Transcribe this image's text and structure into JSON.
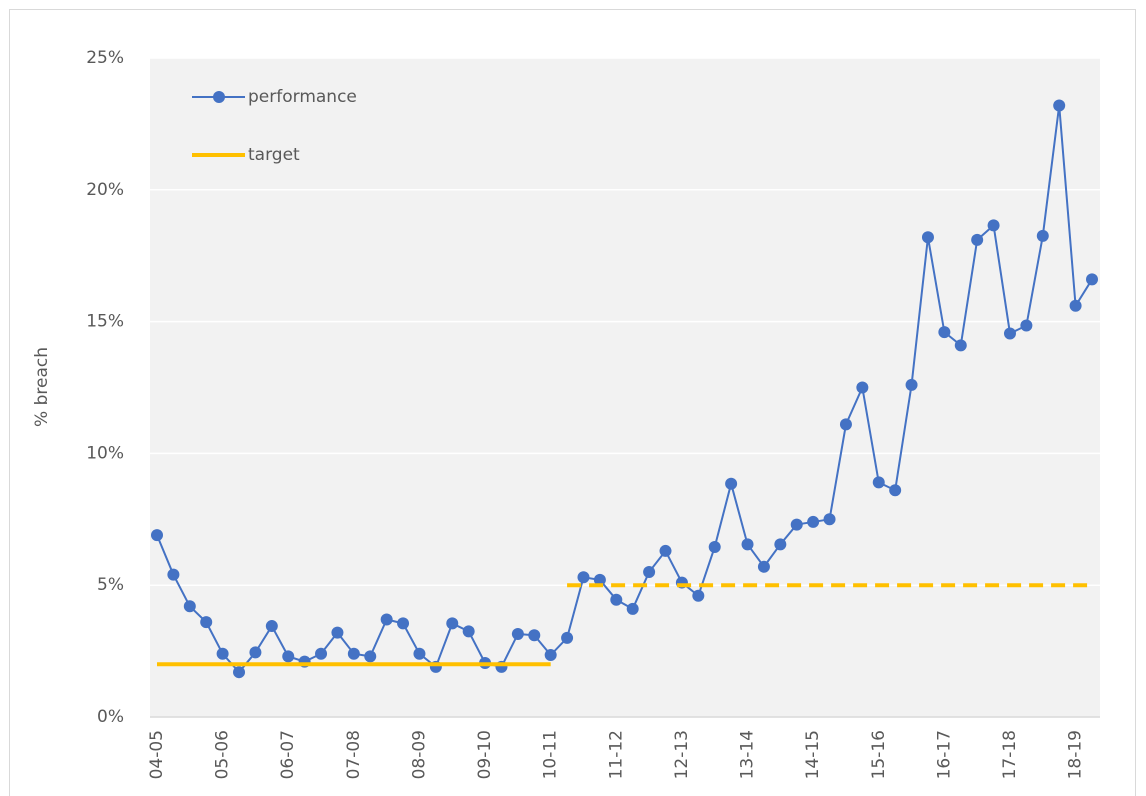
{
  "chart_data": {
    "type": "line",
    "y_label": "% breach",
    "categories": [
      "04-05",
      null,
      null,
      null,
      "05-06",
      null,
      null,
      null,
      "06-07",
      null,
      null,
      null,
      "07-08",
      null,
      null,
      null,
      "08-09",
      null,
      null,
      null,
      "09-10",
      null,
      null,
      null,
      "10-11",
      null,
      null,
      null,
      "11-12",
      null,
      null,
      null,
      "12-13",
      null,
      null,
      null,
      "13-14",
      null,
      null,
      null,
      "14-15",
      null,
      null,
      null,
      "15-16",
      null,
      null,
      null,
      "16-17",
      null,
      null,
      null,
      "17-18",
      null,
      null,
      null,
      "18-19",
      null
    ],
    "series": [
      {
        "name": "performance",
        "color": "#4472c4",
        "marker": "circle",
        "values": [
          6.9,
          5.4,
          4.2,
          3.6,
          2.4,
          1.7,
          2.45,
          3.45,
          2.3,
          2.1,
          2.4,
          3.2,
          2.4,
          2.3,
          3.7,
          3.55,
          2.4,
          1.9,
          3.55,
          3.25,
          2.05,
          1.9,
          3.15,
          3.1,
          2.35,
          3.0,
          5.3,
          5.2,
          4.45,
          4.1,
          5.5,
          6.3,
          5.1,
          4.6,
          6.45,
          8.85,
          6.55,
          5.7,
          6.55,
          7.3,
          7.4,
          7.5,
          11.1,
          12.5,
          8.9,
          8.6,
          12.6,
          18.2,
          14.6,
          14.1,
          18.1,
          18.65,
          14.55,
          14.85,
          18.25,
          23.2,
          15.6,
          16.6
        ]
      },
      {
        "name": "target",
        "color": "#ffc000",
        "marker": "none",
        "line_styles": [
          "solid",
          "dashed"
        ],
        "values": [
          2,
          2,
          2,
          2,
          2,
          2,
          2,
          2,
          2,
          2,
          2,
          2,
          2,
          2,
          2,
          2,
          2,
          2,
          2,
          2,
          2,
          2,
          2,
          2,
          2,
          5,
          5,
          5,
          5,
          5,
          5,
          5,
          5,
          5,
          5,
          5,
          5,
          5,
          5,
          5,
          5,
          5,
          5,
          5,
          5,
          5,
          5,
          5,
          5,
          5,
          5,
          5,
          5,
          5,
          5,
          5,
          5,
          5
        ]
      }
    ],
    "ylim": [
      0,
      25
    ],
    "yticks": [
      {
        "value": 0,
        "label": "0%"
      },
      {
        "value": 5,
        "label": "5%"
      },
      {
        "value": 10,
        "label": "10%"
      },
      {
        "value": 15,
        "label": "15%"
      },
      {
        "value": 20,
        "label": "20%"
      },
      {
        "value": 25,
        "label": "25%"
      }
    ],
    "grid": true,
    "legend": "top-left"
  }
}
